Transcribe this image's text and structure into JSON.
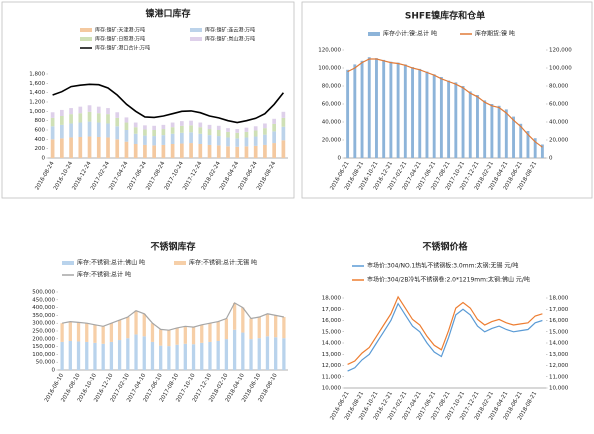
{
  "chart_data": [
    {
      "type": "combo",
      "title": "镍港口库存",
      "stacked": true,
      "categories": [
        "2016-08-24",
        null,
        "2016-10-24",
        null,
        "2016-12-24",
        null,
        "2017-02-24",
        null,
        "2017-04-24",
        null,
        "2017-06-24",
        null,
        "2017-08-24",
        null,
        "2017-10-24",
        null,
        "2017-12-24",
        null,
        "2018-02-24",
        null,
        "2018-04-24",
        null,
        "2018-06-24",
        null,
        "2018-08-24",
        null
      ],
      "ylim": [
        0,
        1800
      ],
      "yticks": [
        0,
        200,
        400,
        600,
        800,
        {
          "value": 1000,
          "label": "1,000"
        },
        {
          "value": 1200,
          "label": "1,200"
        },
        {
          "value": 1400,
          "label": "1,400"
        },
        {
          "value": 1600,
          "label": "1,600"
        },
        {
          "value": 1800,
          "label": "1,800"
        }
      ],
      "series": [
        {
          "name": "库存:镍矿:天津港:万吨",
          "kind": "bar",
          "color": "#f4c9a0",
          "values": [
            400,
            420,
            440,
            450,
            460,
            450,
            440,
            400,
            350,
            300,
            280,
            270,
            280,
            300,
            310,
            320,
            300,
            280,
            270,
            250,
            240,
            250,
            260,
            280,
            320,
            380
          ]
        },
        {
          "name": "库存:镍矿:连云港:万吨",
          "kind": "bar",
          "color": "#bcd3ea",
          "values": [
            280,
            290,
            300,
            310,
            320,
            310,
            300,
            280,
            250,
            220,
            200,
            200,
            210,
            220,
            230,
            230,
            220,
            210,
            200,
            190,
            180,
            190,
            200,
            220,
            250,
            290
          ]
        },
        {
          "name": "库存:镍矿:日照港:万吨",
          "kind": "bar",
          "color": "#cfe0b6",
          "values": [
            180,
            190,
            200,
            200,
            210,
            200,
            200,
            180,
            160,
            140,
            130,
            130,
            130,
            140,
            150,
            150,
            140,
            130,
            130,
            120,
            120,
            120,
            130,
            140,
            160,
            190
          ]
        },
        {
          "name": "库存:镍矿:岚山港:万吨",
          "kind": "bar",
          "color": "#ded0ea",
          "values": [
            120,
            130,
            130,
            140,
            140,
            140,
            130,
            120,
            110,
            100,
            90,
            90,
            90,
            100,
            100,
            100,
            100,
            90,
            90,
            80,
            80,
            90,
            90,
            100,
            110,
            130
          ]
        },
        {
          "name": "库存:镍矿:港口合计:万吨",
          "kind": "line",
          "color": "#000000",
          "values": [
            1350,
            1420,
            1530,
            1560,
            1580,
            1570,
            1500,
            1350,
            1150,
            1000,
            880,
            870,
            900,
            950,
            1000,
            1010,
            970,
            900,
            860,
            800,
            760,
            800,
            850,
            950,
            1150,
            1400
          ]
        }
      ]
    },
    {
      "type": "combo",
      "title": "SHFE镍库存和仓单",
      "stacked": false,
      "categories": [
        "2016-06-21",
        null,
        "2016-08-21",
        null,
        "2016-10-21",
        null,
        "2016-12-21",
        null,
        "2017-02-21",
        null,
        "2017-04-21",
        null,
        "2017-06-21",
        null,
        "2017-08-21",
        null,
        "2017-10-21",
        null,
        "2017-12-21",
        null,
        "2018-02-21",
        null,
        "2018-04-21",
        null,
        "2018-06-21",
        null,
        "2018-08-21",
        null
      ],
      "ylim": [
        0,
        120000
      ],
      "yticks": [
        0,
        {
          "value": 20000,
          "label": "20,000"
        },
        {
          "value": 40000,
          "label": "40,000"
        },
        {
          "value": 60000,
          "label": "60,000"
        },
        {
          "value": 80000,
          "label": "80,000"
        },
        {
          "value": 100000,
          "label": "100,000"
        },
        {
          "value": 120000,
          "label": "120,000"
        }
      ],
      "y2lim": [
        0,
        120000
      ],
      "y2ticks": [
        0,
        {
          "value": 20000,
          "label": "20,000"
        },
        {
          "value": 40000,
          "label": "40,000"
        },
        {
          "value": 60000,
          "label": "60,000"
        },
        {
          "value": 80000,
          "label": "80,000"
        },
        {
          "value": 100000,
          "label": "100,000"
        },
        {
          "value": 120000,
          "label": "120,000"
        }
      ],
      "series": [
        {
          "name": "库存小计:镍:总计 吨",
          "kind": "bar",
          "color": "#8db4d9",
          "values": [
            98000,
            104000,
            108000,
            112000,
            111000,
            109000,
            107000,
            106000,
            104000,
            101000,
            99000,
            96000,
            93000,
            90000,
            86000,
            84000,
            80000,
            74000,
            70000,
            64000,
            60000,
            58000,
            54000,
            46000,
            38000,
            30000,
            22000,
            15000
          ]
        },
        {
          "name": "库存期货:镍 吨",
          "kind": "line",
          "axis": "y2",
          "color": "#e07b39",
          "values": [
            96000,
            100000,
            106000,
            110000,
            110000,
            108000,
            106000,
            105000,
            103000,
            100000,
            98000,
            95000,
            92000,
            88000,
            85000,
            82000,
            78000,
            72000,
            68000,
            62000,
            58000,
            56000,
            50000,
            42000,
            35000,
            26000,
            18000,
            12000
          ]
        }
      ]
    },
    {
      "type": "combo",
      "title": "不锈钢库存",
      "stacked": true,
      "categories": [
        "2016-06-10",
        null,
        "2016-08-10",
        null,
        "2016-10-10",
        null,
        "2016-12-10",
        null,
        "2017-02-10",
        null,
        "2017-04-10",
        null,
        "2017-06-10",
        null,
        "2017-08-10",
        null,
        "2017-10-10",
        null,
        "2017-12-10",
        null,
        "2018-02-10",
        null,
        "2018-04-10",
        null,
        "2018-06-10",
        null,
        "2018-08-10",
        null
      ],
      "ylim": [
        0,
        500000
      ],
      "yticks": [
        0,
        {
          "value": 50000,
          "label": "50,000"
        },
        {
          "value": 100000,
          "label": "100,000"
        },
        {
          "value": 150000,
          "label": "150,000"
        },
        {
          "value": 200000,
          "label": "200,000"
        },
        {
          "value": 250000,
          "label": "250,000"
        },
        {
          "value": 300000,
          "label": "300,000"
        },
        {
          "value": 350000,
          "label": "350,000"
        },
        {
          "value": 400000,
          "label": "400,000"
        },
        {
          "value": 450000,
          "label": "450,000"
        },
        {
          "value": 500000,
          "label": "500,000"
        }
      ],
      "series": [
        {
          "name": "库存:不锈钢:总计:佛山 吨",
          "kind": "bar",
          "color": "#b9d3ec",
          "values": [
            180000,
            186000,
            183000,
            180000,
            174000,
            168000,
            180000,
            192000,
            204000,
            228000,
            216000,
            180000,
            156000,
            153000,
            162000,
            168000,
            165000,
            174000,
            180000,
            186000,
            198000,
            258000,
            240000,
            198000,
            204000,
            216000,
            210000,
            204000
          ]
        },
        {
          "name": "库存:不锈钢:总计:无锡 吨",
          "kind": "bar",
          "color": "#f6cfa8",
          "values": [
            120000,
            124000,
            122000,
            120000,
            116000,
            112000,
            120000,
            128000,
            136000,
            152000,
            144000,
            120000,
            104000,
            102000,
            108000,
            112000,
            110000,
            116000,
            120000,
            124000,
            132000,
            172000,
            160000,
            132000,
            136000,
            144000,
            140000,
            136000
          ]
        },
        {
          "name": "库存:不锈钢:总计 吨",
          "kind": "line",
          "color": "#a6a6a6",
          "values": [
            300000,
            310000,
            305000,
            300000,
            290000,
            280000,
            300000,
            320000,
            340000,
            380000,
            360000,
            300000,
            260000,
            255000,
            270000,
            280000,
            275000,
            290000,
            300000,
            310000,
            330000,
            430000,
            400000,
            330000,
            340000,
            360000,
            350000,
            340000
          ]
        }
      ]
    },
    {
      "type": "line",
      "title": "不锈钢价格",
      "stacked": false,
      "categories": [
        "2016-06-21",
        null,
        "2016-08-21",
        null,
        "2016-10-21",
        null,
        "2016-12-21",
        null,
        "2017-02-21",
        null,
        "2017-04-21",
        null,
        "2017-06-21",
        null,
        "2017-08-21",
        null,
        "2017-10-21",
        null,
        "2017-12-21",
        null,
        "2018-02-21",
        null,
        "2018-04-21",
        null,
        "2018-06-21",
        null,
        "2018-08-21",
        null
      ],
      "ylim": [
        10000,
        18000
      ],
      "yticks": [
        {
          "value": 10000,
          "label": "10,000"
        },
        {
          "value": 11000,
          "label": "11,000"
        },
        {
          "value": 12000,
          "label": "12,000"
        },
        {
          "value": 13000,
          "label": "13,000"
        },
        {
          "value": 14000,
          "label": "14,000"
        },
        {
          "value": 15000,
          "label": "15,000"
        },
        {
          "value": 16000,
          "label": "16,000"
        },
        {
          "value": 17000,
          "label": "17,000"
        },
        {
          "value": 18000,
          "label": "18,000"
        }
      ],
      "y2lim": [
        10000,
        18000
      ],
      "y2ticks": [
        {
          "value": 10000,
          "label": "10,000"
        },
        {
          "value": 11000,
          "label": "11,000"
        },
        {
          "value": 12000,
          "label": "12,000"
        },
        {
          "value": 13000,
          "label": "13,000"
        },
        {
          "value": 14000,
          "label": "14,000"
        },
        {
          "value": 15000,
          "label": "15,000"
        },
        {
          "value": 16000,
          "label": "16,000"
        },
        {
          "value": 17000,
          "label": "17,000"
        },
        {
          "value": 18000,
          "label": "18,000"
        }
      ],
      "series": [
        {
          "name": "市场价:304/NO.1热轧不锈钢板:3.0mm:太钢:无锡 元/吨",
          "kind": "line",
          "color": "#5b9bd5",
          "values": [
            11500,
            11800,
            12500,
            13000,
            14000,
            15000,
            16000,
            17500,
            16500,
            15500,
            15000,
            14000,
            13200,
            12800,
            14500,
            16500,
            17000,
            16500,
            15500,
            15000,
            15300,
            15500,
            15200,
            15000,
            15100,
            15200,
            15800,
            16000
          ]
        },
        {
          "name": "市场价:304/2B冷轧不锈钢卷:2.0*1219mm:太钢:佛山 元/吨",
          "kind": "line",
          "axis": "y2",
          "color": "#ed7d31",
          "values": [
            12100,
            12400,
            13100,
            13600,
            14600,
            15600,
            16600,
            18100,
            17100,
            16100,
            15600,
            14600,
            13800,
            13400,
            15100,
            17100,
            17600,
            17100,
            16100,
            15600,
            15900,
            16100,
            15800,
            15600,
            15700,
            15800,
            16400,
            16600
          ]
        }
      ]
    }
  ]
}
